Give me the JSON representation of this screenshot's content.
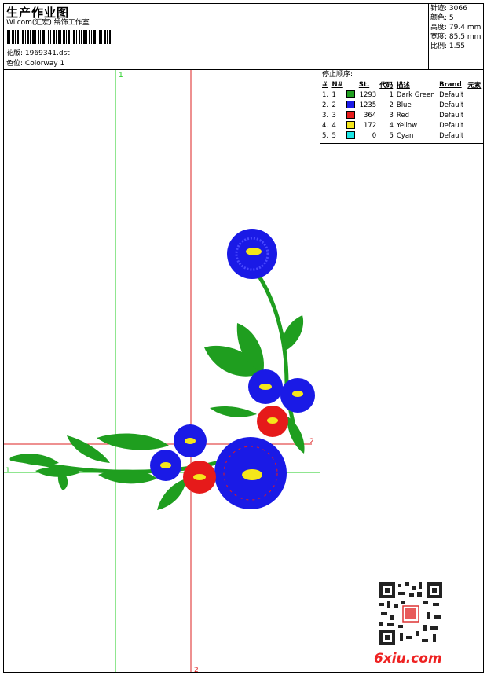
{
  "header": {
    "title": "生产作业图",
    "subtitle": "Wilcom(汇宏) 绣饰工作室",
    "design_label": "花版:",
    "design_value": "1969341.dst",
    "colorway_label": "色位:",
    "colorway_value": "Colorway 1"
  },
  "stats": [
    {
      "label": "针迹:",
      "value": "3066"
    },
    {
      "label": "颜色:",
      "value": "5"
    },
    {
      "label": "高度:",
      "value": "79.4 mm"
    },
    {
      "label": "宽度:",
      "value": "85.5 mm"
    },
    {
      "label": "比例:",
      "value": "1.55"
    }
  ],
  "stop_sequence": {
    "title": "停止顺序:",
    "columns": [
      "#",
      "N#",
      "St.",
      "代码",
      "描述",
      "Brand",
      "元素"
    ],
    "rows": [
      {
        "idx": "1.",
        "n": "1",
        "color": "#1f9e1f",
        "st": "1293",
        "code": "1",
        "desc": "Dark Green",
        "brand": "Default"
      },
      {
        "idx": "2.",
        "n": "2",
        "color": "#1a1ae6",
        "st": "1235",
        "code": "2",
        "desc": "Blue",
        "brand": "Default"
      },
      {
        "idx": "3.",
        "n": "3",
        "color": "#e61a1a",
        "st": "364",
        "code": "3",
        "desc": "Red",
        "brand": "Default"
      },
      {
        "idx": "4.",
        "n": "4",
        "color": "#f5e61a",
        "st": "172",
        "code": "4",
        "desc": "Yellow",
        "brand": "Default"
      },
      {
        "idx": "5.",
        "n": "5",
        "color": "#1ae6e6",
        "st": "0",
        "code": "5",
        "desc": "Cyan",
        "brand": "Default"
      }
    ]
  },
  "guides": {
    "green_v_label": "1",
    "green_h_label": "1",
    "red_v_label": "2",
    "red_h_label": "2"
  },
  "watermark": "6xiu.com",
  "colors": {
    "green": "#1f9e1f",
    "blue": "#1a1ae6",
    "red": "#e61a1a",
    "yellow": "#f5e61a",
    "guide_green": "#22cc22",
    "guide_red": "#dd2222"
  }
}
